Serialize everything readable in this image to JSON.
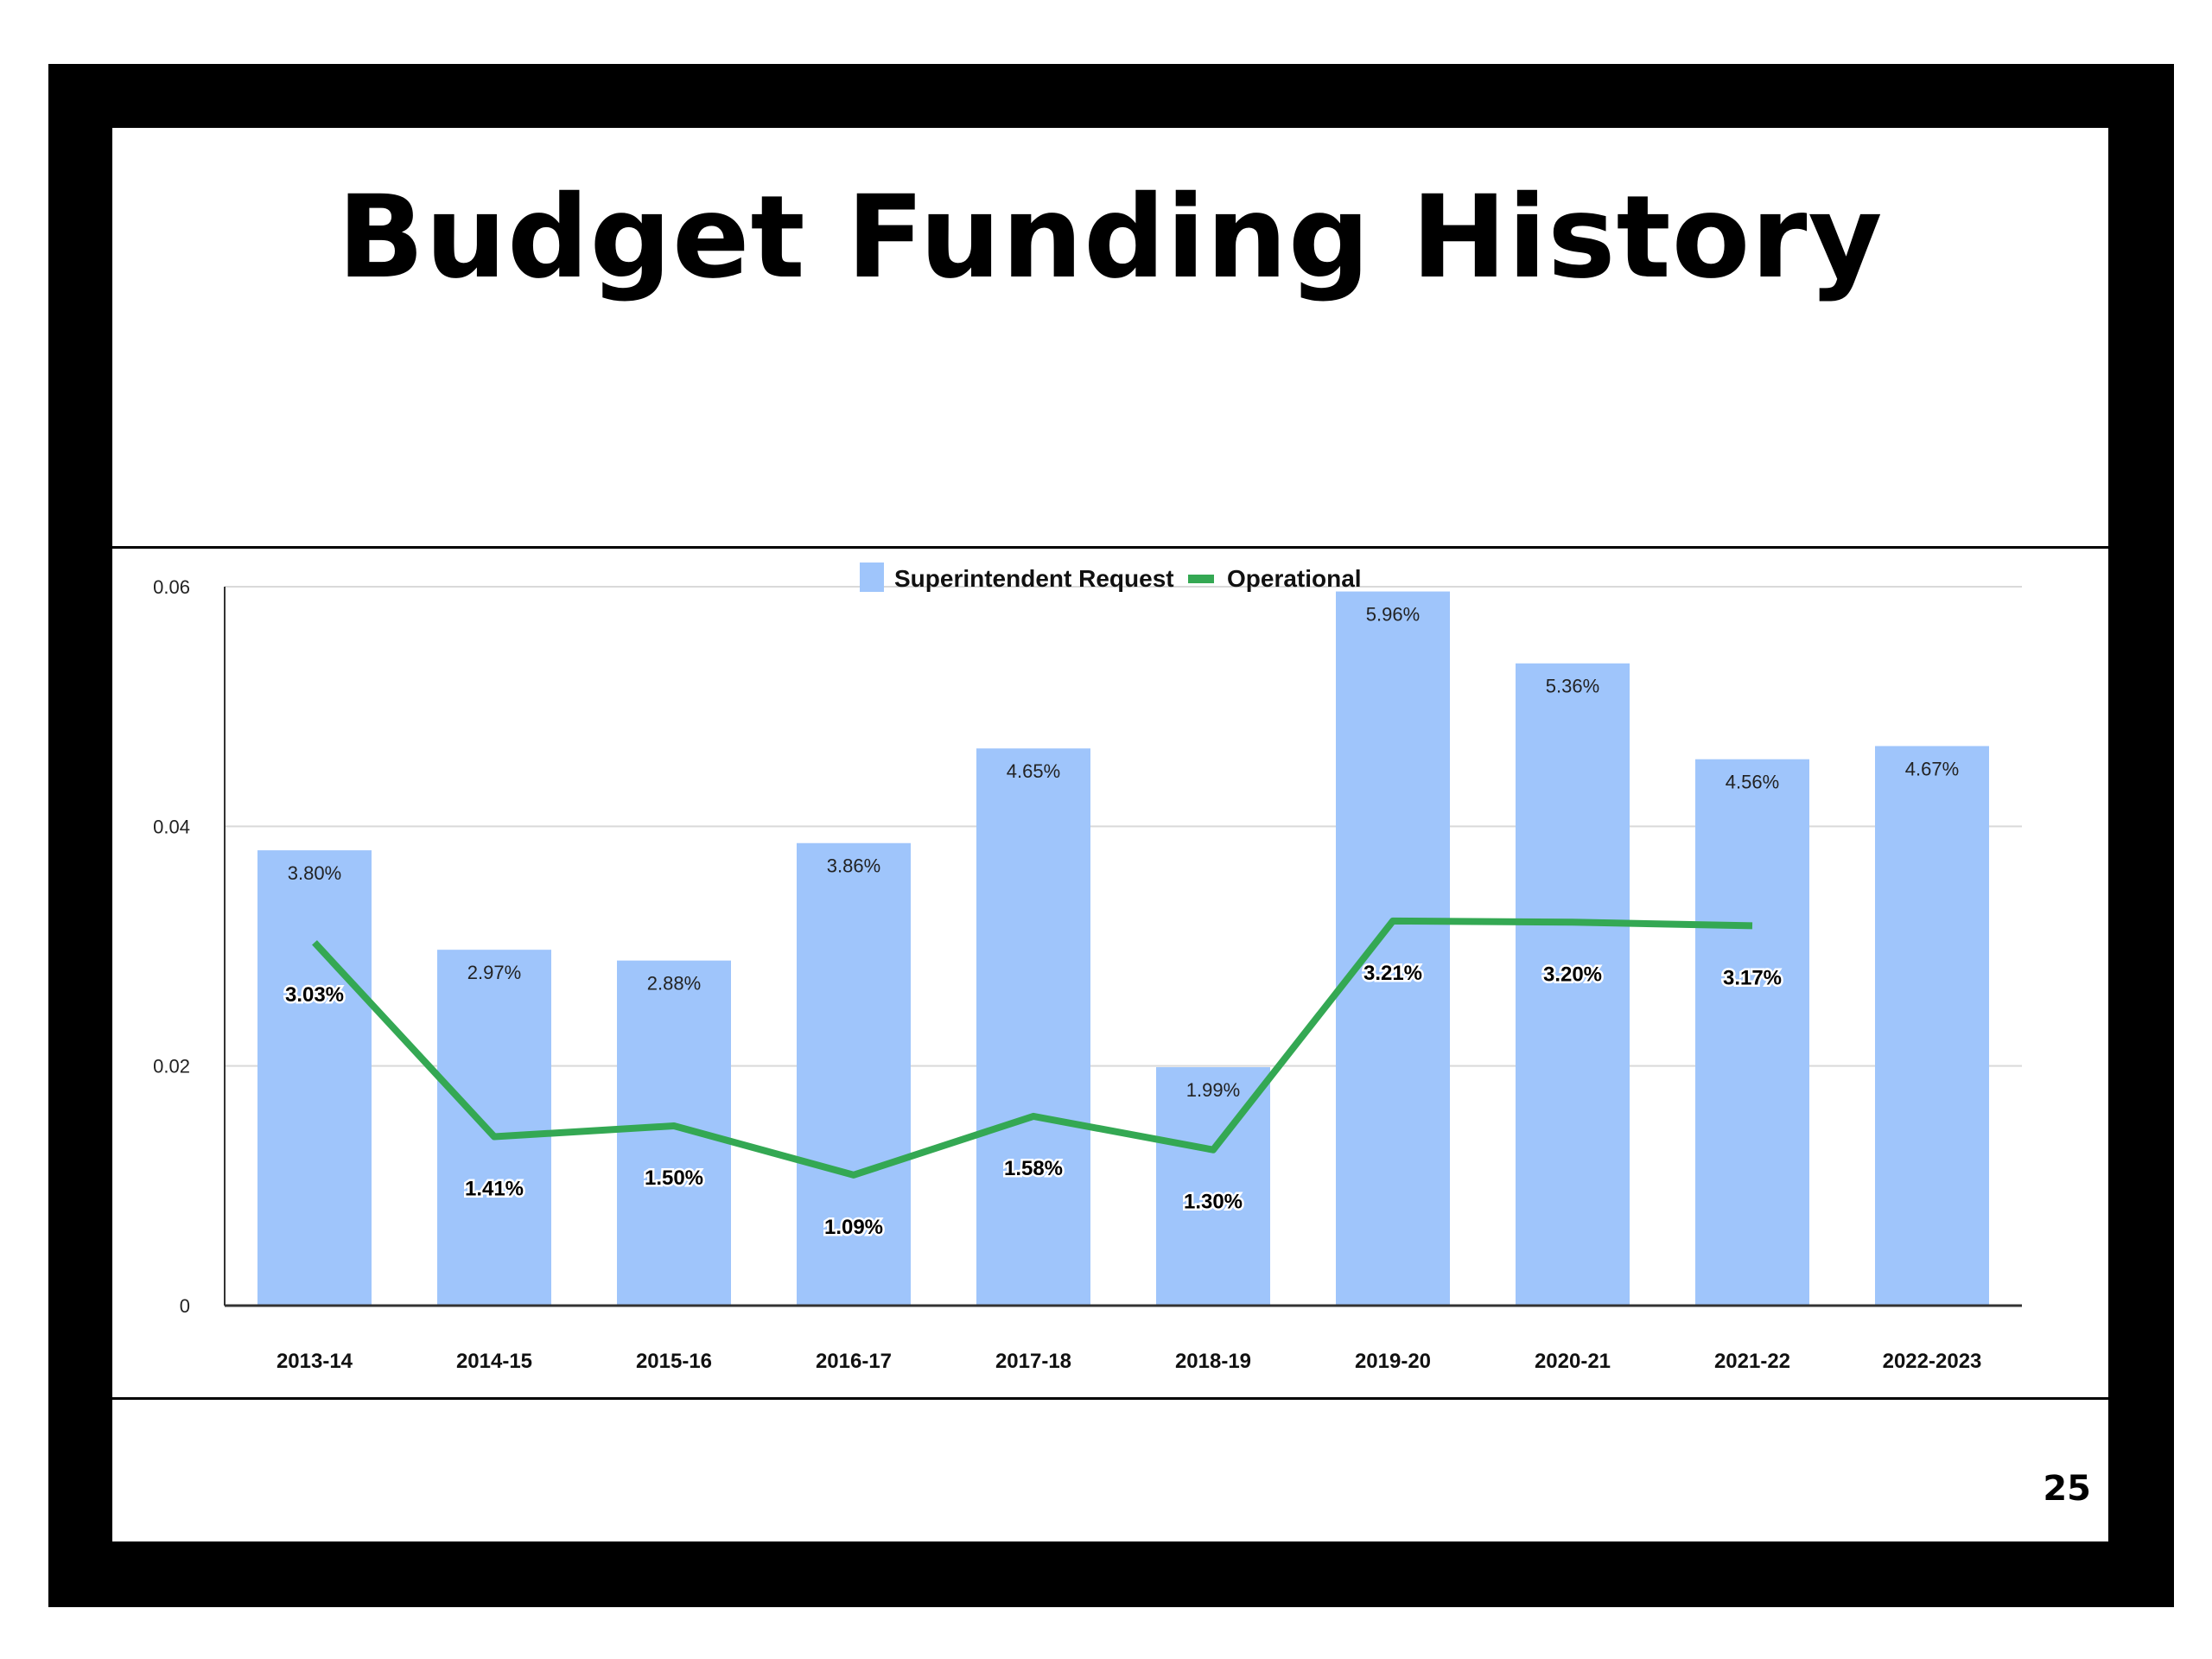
{
  "slide": {
    "title": "Budget Funding History",
    "page_number": "25"
  },
  "chart_data": {
    "type": "bar",
    "title": "",
    "xlabel": "",
    "ylabel": "",
    "ylim": [
      0,
      0.06
    ],
    "yticks": [
      0,
      0.02,
      0.04,
      0.06
    ],
    "ytick_labels": [
      "0",
      "0.02",
      "0.04",
      "0.06"
    ],
    "grid": true,
    "legend_position": "top-center",
    "categories": [
      "2013-14",
      "2014-15",
      "2015-16",
      "2016-17",
      "2017-18",
      "2018-19",
      "2019-20",
      "2020-21",
      "2021-22",
      "2022-2023"
    ],
    "series": [
      {
        "name": "Superintendent Request",
        "type": "bar",
        "color": "#9fc5fb",
        "values": [
          0.038,
          0.0297,
          0.0288,
          0.0386,
          0.0465,
          0.0199,
          0.0596,
          0.0536,
          0.0456,
          0.0467
        ],
        "labels": [
          "3.80%",
          "2.97%",
          "2.88%",
          "3.86%",
          "4.65%",
          "1.99%",
          "5.96%",
          "5.36%",
          "4.56%",
          "4.67%"
        ]
      },
      {
        "name": "Operational",
        "type": "line",
        "color": "#34a853",
        "values": [
          0.0303,
          0.0141,
          0.015,
          0.0109,
          0.0158,
          0.013,
          0.0321,
          0.032,
          0.0317,
          null
        ],
        "labels": [
          "3.03%",
          "1.41%",
          "1.50%",
          "1.09%",
          "1.58%",
          "1.30%",
          "3.21%",
          "3.20%",
          "3.17%",
          null
        ]
      }
    ]
  }
}
